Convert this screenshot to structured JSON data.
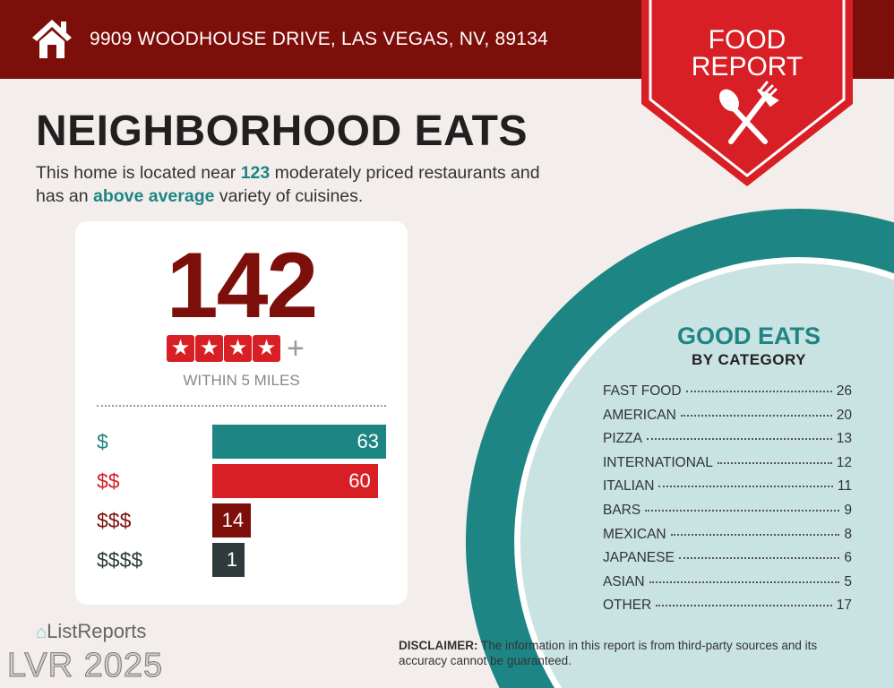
{
  "header": {
    "address": "9909 WOODHOUSE DRIVE, LAS VEGAS, NV, 89134",
    "home_icon": "house-icon"
  },
  "badge": {
    "line1": "FOOD",
    "line2": "REPORT",
    "icon": "spoon-fork-icon"
  },
  "title": "NEIGHBORHOOD EATS",
  "description": {
    "part1": "This home is located near ",
    "count": "123",
    "part2": " moderately priced restaurants and",
    "part3": "has an ",
    "variety": "above average",
    "part4": " variety of cuisines."
  },
  "summary": {
    "total": "142",
    "stars": 4,
    "star_plus": "+",
    "within": "WITHIN 5 MILES"
  },
  "colors": {
    "header": "#7d0f0b",
    "red": "#d81f26",
    "teal": "#1e8585",
    "dark_red": "#7d0f0b",
    "dark_gray": "#2f3a3c"
  },
  "price_levels": [
    {
      "label": "$",
      "value": 63,
      "color": "#1e8585"
    },
    {
      "label": "$$",
      "value": 60,
      "color": "#d81f26"
    },
    {
      "label": "$$$",
      "value": 14,
      "color": "#7d0f0b"
    },
    {
      "label": "$$$$",
      "value": 1,
      "color": "#2f3a3c"
    }
  ],
  "categories": {
    "title": "GOOD EATS",
    "subtitle": "BY CATEGORY",
    "items": [
      {
        "name": "FAST FOOD",
        "count": "26"
      },
      {
        "name": "AMERICAN",
        "count": "20"
      },
      {
        "name": "PIZZA",
        "count": "13"
      },
      {
        "name": "INTERNATIONAL",
        "count": "12"
      },
      {
        "name": "ITALIAN",
        "count": "11"
      },
      {
        "name": "BARS",
        "count": "9"
      },
      {
        "name": "MEXICAN",
        "count": "8"
      },
      {
        "name": "JAPANESE",
        "count": "6"
      },
      {
        "name": "ASIAN",
        "count": "5"
      },
      {
        "name": "OTHER",
        "count": "17"
      }
    ]
  },
  "footer": {
    "logo": "ListReports",
    "watermark": "LVR 2025",
    "disclaimer_label": "DISCLAIMER:",
    "disclaimer_text": " The information in this report is from third-party sources and its accuracy cannot be guaranteed."
  }
}
